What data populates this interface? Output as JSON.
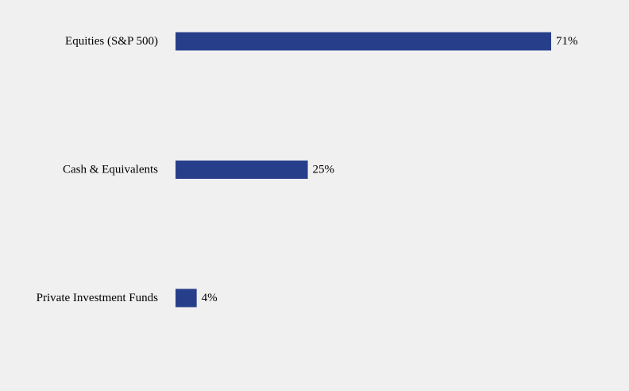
{
  "chart_data": {
    "type": "bar",
    "orientation": "horizontal",
    "categories": [
      "Equities (S&P 500)",
      "Cash & Equivalents",
      "Private Investment Funds"
    ],
    "values": [
      71,
      25,
      4
    ],
    "value_labels": [
      "71%",
      "25%",
      "4%"
    ],
    "xlim": [
      0,
      100
    ],
    "grid": false,
    "title": "",
    "xlabel": "",
    "ylabel": "",
    "bar_color": "#273f8a"
  },
  "colors": {
    "background": "#f0f0f1",
    "bar": "#273f8a",
    "text": "#000000"
  }
}
